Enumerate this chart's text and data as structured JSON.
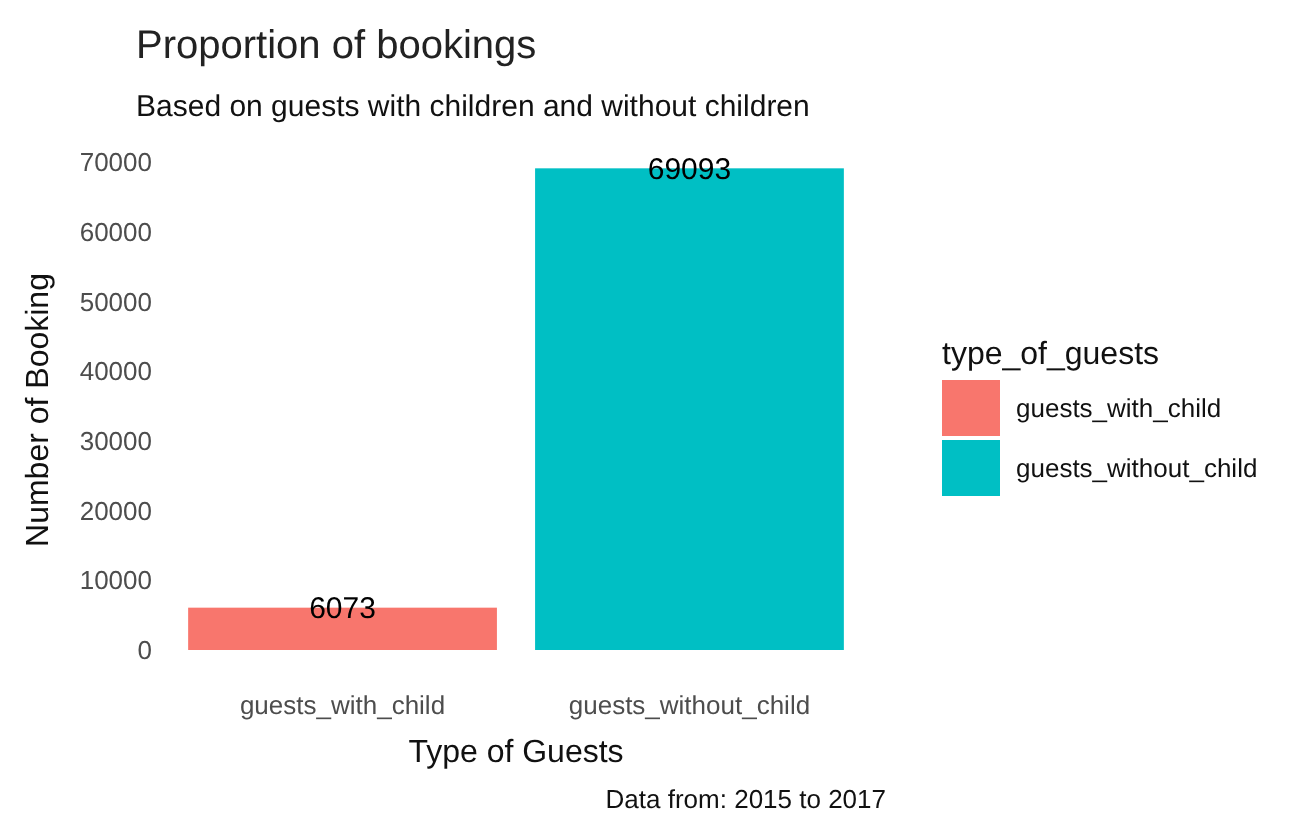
{
  "chart_data": {
    "type": "bar",
    "title": "Proportion of bookings",
    "subtitle": "Based on guests with children and without children",
    "xlabel": "Type of Guests",
    "ylabel": "Number of Booking",
    "legend_title": "type_of_guests",
    "annotations": [
      "Data from: 2015 to 2017"
    ],
    "categories": [
      "guests_with_child",
      "guests_without_child"
    ],
    "stacked": true,
    "series": [
      {
        "name": "guests_with_child",
        "color": "#f8766d",
        "values": [
          6073,
          null
        ]
      },
      {
        "name": "guests_without_child",
        "color": "#00bfc4",
        "values": [
          null,
          69093
        ]
      }
    ],
    "ylim": [
      0,
      70000
    ],
    "yticks": [
      0,
      10000,
      20000,
      30000,
      40000,
      50000,
      60000,
      70000
    ],
    "data_labels": true,
    "legend": "right"
  }
}
